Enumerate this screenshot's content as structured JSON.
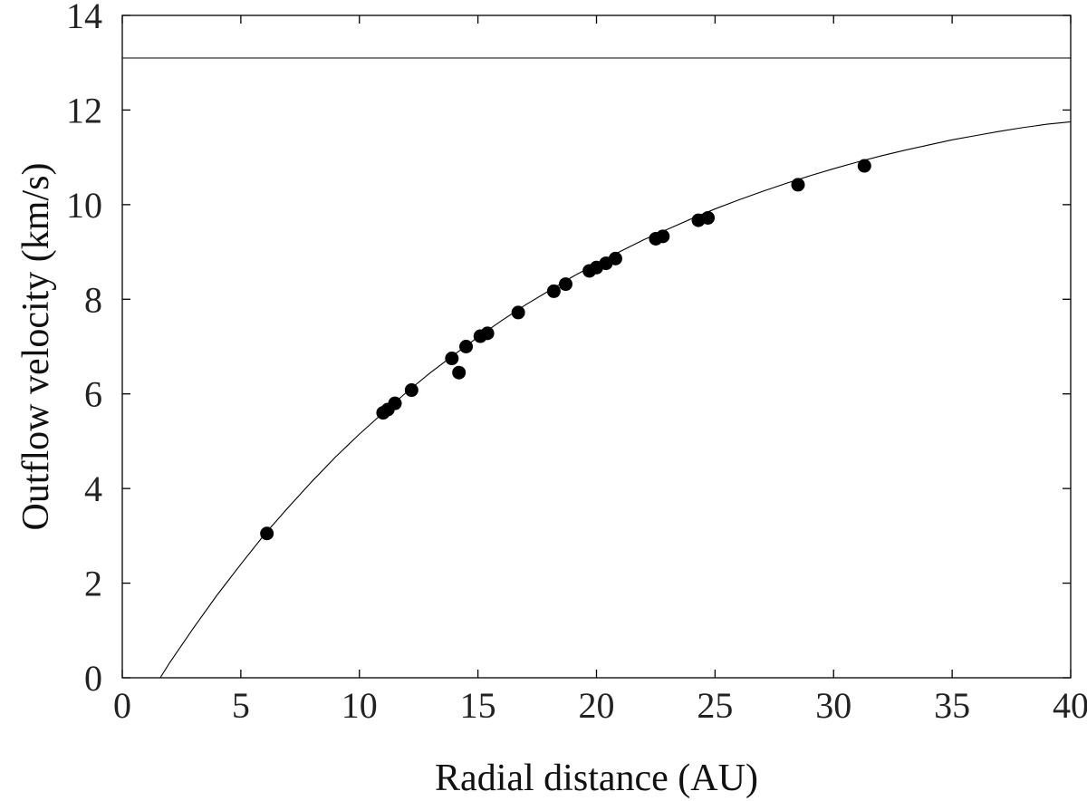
{
  "chart_data": {
    "type": "scatter",
    "title": "",
    "xlabel": "Radial distance (AU)",
    "ylabel": "Outflow velocity (km/s)",
    "xlim": [
      0,
      40
    ],
    "ylim": [
      0,
      14
    ],
    "xticks": [
      0,
      5,
      10,
      15,
      20,
      25,
      30,
      35,
      40
    ],
    "yticks": [
      0,
      2,
      4,
      6,
      8,
      10,
      12,
      14
    ],
    "grid": false,
    "legend": "none",
    "series": [
      {
        "marker": "filled-circle",
        "color": "#000000",
        "points": [
          {
            "x": 6.1,
            "y": 3.05
          },
          {
            "x": 11.0,
            "y": 5.6
          },
          {
            "x": 11.2,
            "y": 5.67
          },
          {
            "x": 11.5,
            "y": 5.8
          },
          {
            "x": 12.2,
            "y": 6.08
          },
          {
            "x": 13.9,
            "y": 6.75
          },
          {
            "x": 14.2,
            "y": 6.45
          },
          {
            "x": 14.5,
            "y": 7.0
          },
          {
            "x": 15.1,
            "y": 7.22
          },
          {
            "x": 15.4,
            "y": 7.28
          },
          {
            "x": 16.7,
            "y": 7.72
          },
          {
            "x": 18.2,
            "y": 8.17
          },
          {
            "x": 18.7,
            "y": 8.32
          },
          {
            "x": 19.7,
            "y": 8.6
          },
          {
            "x": 20.0,
            "y": 8.67
          },
          {
            "x": 20.4,
            "y": 8.76
          },
          {
            "x": 20.8,
            "y": 8.86
          },
          {
            "x": 22.5,
            "y": 9.28
          },
          {
            "x": 22.8,
            "y": 9.33
          },
          {
            "x": 24.3,
            "y": 9.67
          },
          {
            "x": 24.7,
            "y": 9.72
          },
          {
            "x": 28.5,
            "y": 10.42
          },
          {
            "x": 31.3,
            "y": 10.82
          }
        ]
      }
    ],
    "fit_curve": {
      "color": "#000000",
      "x": [
        1.6,
        2,
        3,
        4,
        5,
        6,
        7,
        8,
        9,
        10,
        11,
        12,
        13,
        14,
        15,
        16,
        17,
        18,
        19,
        20,
        21,
        22,
        23,
        24,
        25,
        26,
        27,
        28,
        29,
        30,
        31,
        32,
        33,
        34,
        35,
        36,
        37,
        38,
        39,
        40
      ],
      "y": [
        0.0,
        0.32,
        1.05,
        1.75,
        2.4,
        3.03,
        3.6,
        4.15,
        4.67,
        5.15,
        5.6,
        6.04,
        6.45,
        6.83,
        7.2,
        7.55,
        7.88,
        8.18,
        8.48,
        8.75,
        9.01,
        9.26,
        9.48,
        9.7,
        9.91,
        10.1,
        10.28,
        10.45,
        10.61,
        10.76,
        10.9,
        11.03,
        11.15,
        11.26,
        11.37,
        11.46,
        11.55,
        11.63,
        11.7,
        11.75
      ]
    },
    "reference_line": {
      "y": 13.1,
      "color": "#000000"
    }
  }
}
